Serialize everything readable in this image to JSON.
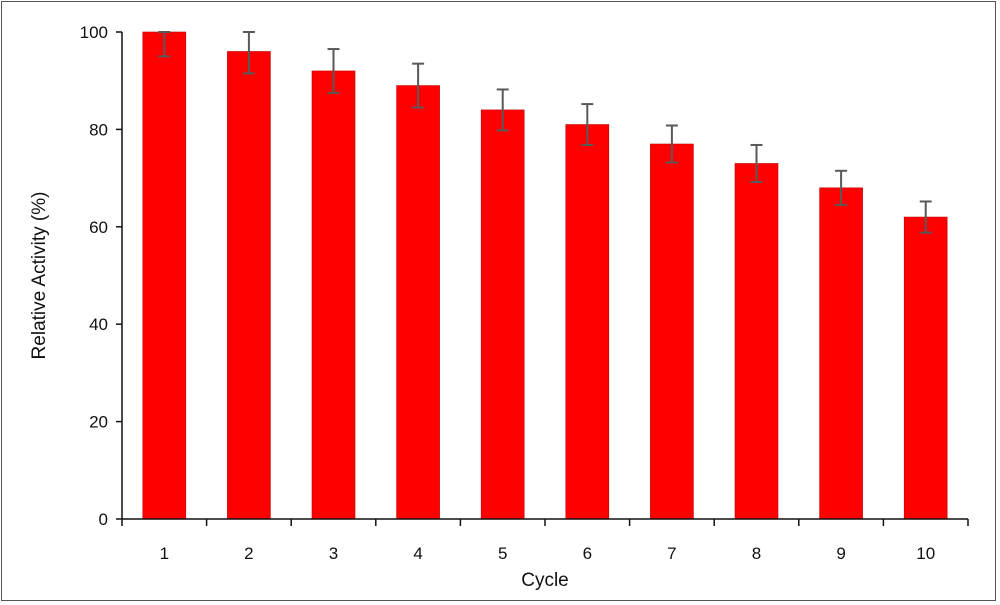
{
  "chart_data": {
    "type": "bar",
    "title": "",
    "xlabel": "Cycle",
    "ylabel": "Relative Activity (%)",
    "categories": [
      "1",
      "2",
      "3",
      "4",
      "5",
      "6",
      "7",
      "8",
      "9",
      "10"
    ],
    "values": [
      100,
      96,
      92,
      89,
      84,
      81,
      77,
      73,
      68,
      62
    ],
    "error": [
      5,
      4.5,
      4.5,
      4.5,
      4.2,
      4.2,
      3.8,
      3.8,
      3.5,
      3.2
    ],
    "ylim": [
      0,
      100
    ],
    "yticks": [
      "0",
      "20",
      "40",
      "60",
      "80",
      "100"
    ],
    "grid": false,
    "legend": "none",
    "bar_color": "#ff0000",
    "bar_edge_color": "#c00000",
    "error_bar_color": "#595959"
  }
}
